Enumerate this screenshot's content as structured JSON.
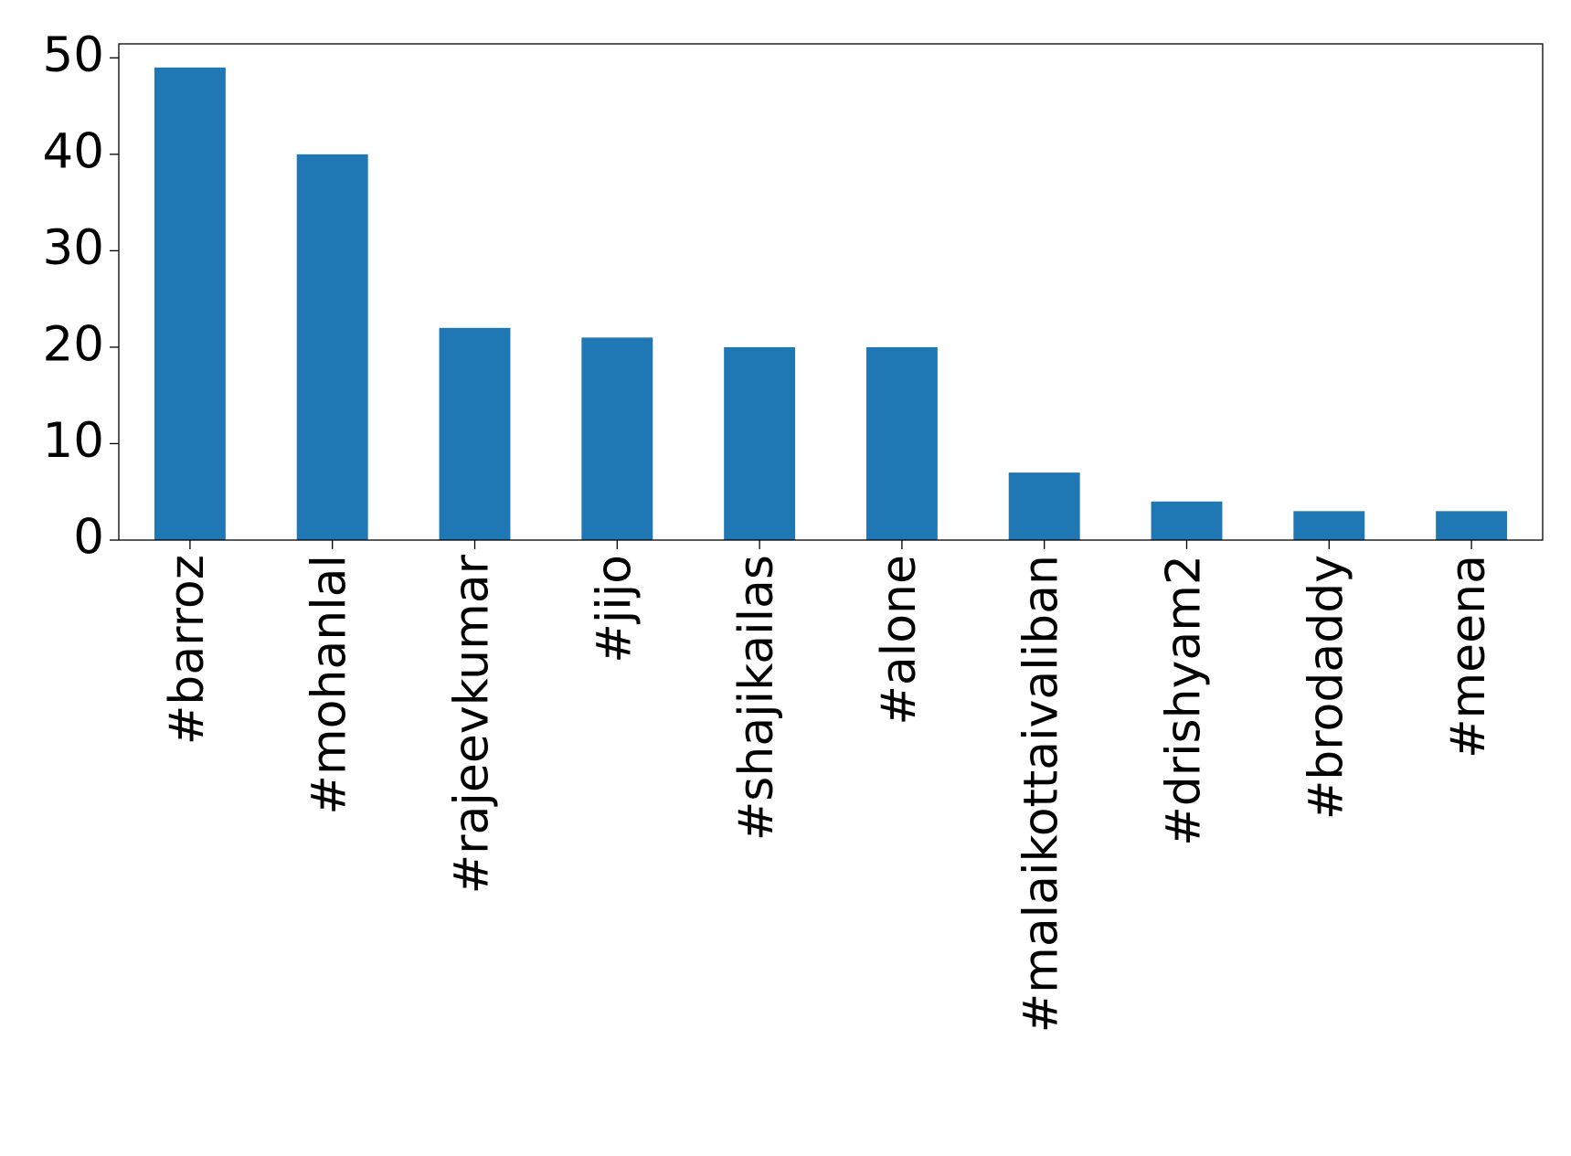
{
  "chart_data": {
    "type": "bar",
    "categories": [
      "#barroz",
      "#mohanlal",
      "#rajeevkumar",
      "#jijo",
      "#shajikailas",
      "#alone",
      "#malaikottaivaliban",
      "#drishyam2",
      "#brodaddy",
      "#meena"
    ],
    "values": [
      49,
      40,
      22,
      21,
      20,
      20,
      7,
      4,
      3,
      3
    ],
    "color": "#1f77b4",
    "ylim": [
      0,
      51.45
    ],
    "yticks": [
      0,
      10,
      20,
      30,
      40,
      50
    ],
    "grid": false
  }
}
